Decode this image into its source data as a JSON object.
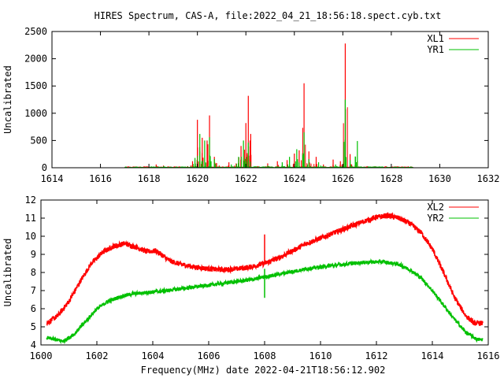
{
  "title": "HIRES Spectrum, CAS-A, file:2022_04_21_18:56:18.spect.cyb.txt",
  "xlabel": "Frequency(MHz) date 2022-04-21T18:56:12.902",
  "chart_data": [
    {
      "type": "line",
      "ylabel": "Uncalibrated",
      "xlim": [
        1614,
        1632
      ],
      "ylim": [
        0,
        2500
      ],
      "xticks": [
        1614,
        1616,
        1618,
        1620,
        1622,
        1624,
        1626,
        1628,
        1630,
        1632
      ],
      "yticks": [
        0,
        500,
        1000,
        1500,
        2000,
        2500
      ],
      "legend_position": "top-right",
      "grid": false,
      "series": [
        {
          "name": "XL1",
          "color": "#ff0000",
          "peaks": [
            [
              1617.2,
              4
            ],
            [
              1617.8,
              30
            ],
            [
              1618.3,
              60
            ],
            [
              1618.6,
              40
            ],
            [
              1618.9,
              20
            ],
            [
              1619.3,
              15
            ],
            [
              1619.6,
              30
            ],
            [
              1619.8,
              120
            ],
            [
              1620.0,
              880
            ],
            [
              1620.1,
              300
            ],
            [
              1620.2,
              550
            ],
            [
              1620.4,
              500
            ],
            [
              1620.5,
              960
            ],
            [
              1620.7,
              200
            ],
            [
              1620.9,
              40
            ],
            [
              1621.3,
              100
            ],
            [
              1621.6,
              80
            ],
            [
              1621.8,
              400
            ],
            [
              1622.0,
              820
            ],
            [
              1622.1,
              1320
            ],
            [
              1622.2,
              620
            ],
            [
              1622.5,
              30
            ],
            [
              1622.9,
              80
            ],
            [
              1623.3,
              120
            ],
            [
              1623.7,
              140
            ],
            [
              1624.0,
              260
            ],
            [
              1624.2,
              320
            ],
            [
              1624.4,
              1550
            ],
            [
              1624.6,
              300
            ],
            [
              1624.9,
              200
            ],
            [
              1625.2,
              60
            ],
            [
              1625.6,
              150
            ],
            [
              1625.9,
              120
            ],
            [
              1626.1,
              2280
            ],
            [
              1626.3,
              250
            ],
            [
              1626.6,
              120
            ],
            [
              1627.0,
              30
            ],
            [
              1627.6,
              20
            ],
            [
              1628.3,
              15
            ],
            [
              1628.7,
              25
            ],
            [
              1628.9,
              10
            ]
          ]
        },
        {
          "name": "YR1",
          "color": "#00c000",
          "peaks": [
            [
              1617.5,
              10
            ],
            [
              1618.0,
              20
            ],
            [
              1618.6,
              25
            ],
            [
              1619.6,
              20
            ],
            [
              1619.9,
              180
            ],
            [
              1620.1,
              620
            ],
            [
              1620.3,
              500
            ],
            [
              1620.5,
              560
            ],
            [
              1620.7,
              160
            ],
            [
              1621.4,
              60
            ],
            [
              1621.7,
              200
            ],
            [
              1621.9,
              500
            ],
            [
              1622.1,
              460
            ],
            [
              1622.9,
              40
            ],
            [
              1623.5,
              100
            ],
            [
              1623.8,
              200
            ],
            [
              1624.1,
              340
            ],
            [
              1624.4,
              650
            ],
            [
              1624.6,
              160
            ],
            [
              1625.0,
              100
            ],
            [
              1625.7,
              60
            ],
            [
              1626.1,
              1250
            ],
            [
              1626.3,
              140
            ],
            [
              1626.6,
              490
            ],
            [
              1627.2,
              10
            ]
          ]
        }
      ]
    },
    {
      "type": "line",
      "ylabel": "Uncalibrated",
      "xlim": [
        1600,
        1616
      ],
      "ylim": [
        4,
        12
      ],
      "xticks": [
        1600,
        1602,
        1604,
        1606,
        1608,
        1610,
        1612,
        1614,
        1616
      ],
      "yticks": [
        4,
        5,
        6,
        7,
        8,
        9,
        10,
        11,
        12
      ],
      "legend_position": "top-right",
      "grid": false,
      "series": [
        {
          "name": "XL2",
          "color": "#ff0000",
          "x": [
            1600.2,
            1600.6,
            1601.0,
            1601.4,
            1601.8,
            1602.2,
            1602.6,
            1603.0,
            1603.4,
            1603.8,
            1604.1,
            1604.3,
            1604.6,
            1605.0,
            1605.5,
            1606.0,
            1606.5,
            1607.0,
            1607.5,
            1608.0,
            1608.5,
            1609.0,
            1609.5,
            1610.0,
            1610.5,
            1611.0,
            1611.5,
            1612.0,
            1612.4,
            1612.8,
            1613.2,
            1613.6,
            1614.0,
            1614.4,
            1614.8,
            1615.2,
            1615.5,
            1615.8
          ],
          "y": [
            5.2,
            5.6,
            6.4,
            7.5,
            8.5,
            9.1,
            9.45,
            9.6,
            9.4,
            9.15,
            9.2,
            9.0,
            8.65,
            8.45,
            8.3,
            8.2,
            8.15,
            8.2,
            8.3,
            8.5,
            8.8,
            9.2,
            9.6,
            9.9,
            10.2,
            10.5,
            10.8,
            11.05,
            11.15,
            11.0,
            10.7,
            10.2,
            9.3,
            8.0,
            6.6,
            5.6,
            5.2,
            5.2
          ],
          "spike": [
            1608.0,
            10.1
          ]
        },
        {
          "name": "YR2",
          "color": "#00c000",
          "x": [
            1600.2,
            1600.8,
            1601.2,
            1601.6,
            1602.0,
            1602.4,
            1602.8,
            1603.2,
            1603.8,
            1604.5,
            1605.5,
            1606.5,
            1607.5,
            1608.5,
            1609.5,
            1610.5,
            1611.5,
            1612.2,
            1612.8,
            1613.2,
            1613.6,
            1614.0,
            1614.4,
            1614.8,
            1615.2,
            1615.6,
            1615.8
          ],
          "y": [
            4.4,
            4.2,
            4.6,
            5.3,
            6.0,
            6.4,
            6.65,
            6.8,
            6.9,
            7.0,
            7.2,
            7.4,
            7.6,
            7.9,
            8.2,
            8.4,
            8.55,
            8.6,
            8.45,
            8.15,
            7.7,
            7.0,
            6.2,
            5.4,
            4.7,
            4.3,
            4.3
          ],
          "spike": [
            1608.0,
            8.2
          ]
        }
      ]
    }
  ]
}
